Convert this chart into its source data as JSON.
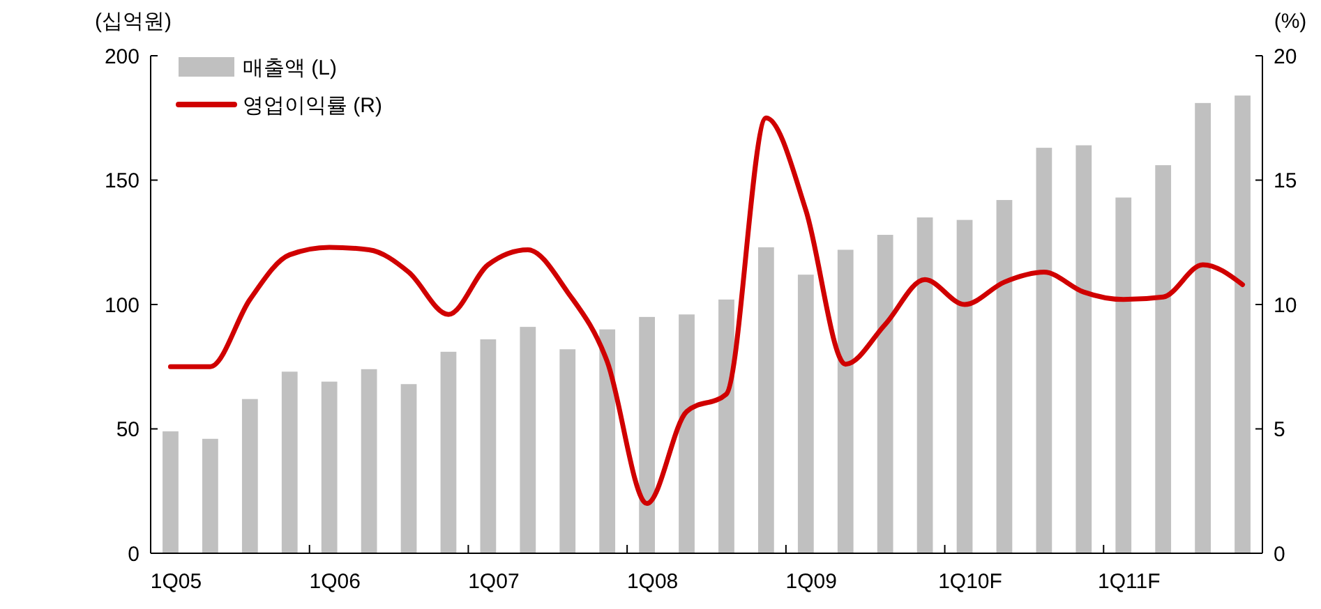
{
  "chart_data": {
    "type": "bar",
    "ylabel": "(십억원)",
    "y2label": "(%)",
    "categories": [
      "1Q05",
      null,
      null,
      null,
      "1Q06",
      null,
      null,
      null,
      "1Q07",
      null,
      null,
      null,
      "1Q08",
      null,
      null,
      null,
      "1Q09",
      null,
      null,
      null,
      "1Q10F",
      null,
      null,
      null,
      "1Q11F",
      null,
      null,
      null
    ],
    "series": [
      {
        "name": "매출액 (L)",
        "color": "#c0c0c0",
        "values": [
          49,
          46,
          62,
          73,
          69,
          74,
          68,
          81,
          86,
          91,
          82,
          90,
          95,
          96,
          102,
          123,
          112,
          122,
          128,
          135,
          134,
          142,
          163,
          164,
          143,
          156,
          181,
          184
        ]
      },
      {
        "name": "영업이익률 (R)",
        "type": "line",
        "axis": "y2",
        "color": "#d00000",
        "values": [
          7.5,
          7.5,
          10.2,
          12.0,
          12.3,
          12.2,
          11.3,
          9.6,
          11.6,
          12.2,
          10.5,
          7.7,
          2.0,
          5.7,
          6.4,
          17.5,
          13.8,
          7.6,
          9.2,
          11.0,
          10.0,
          10.9,
          11.3,
          10.5,
          10.2,
          10.3,
          11.6,
          10.8
        ]
      }
    ],
    "ylim": [
      0,
      200
    ],
    "yticks": [
      0,
      50,
      100,
      150,
      200
    ],
    "y2lim": [
      0,
      20
    ],
    "y2ticks": [
      0,
      5,
      10,
      15,
      20
    ],
    "legend": "top left",
    "grid": false
  }
}
